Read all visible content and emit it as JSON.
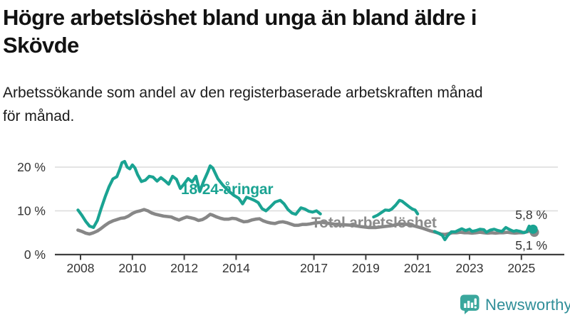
{
  "header": {
    "title": "Högre arbetslöshet bland unga än bland äldre i Skövde",
    "title_lines": [
      "Högre arbetslöshet bland unga än bland äldre i",
      "Skövde"
    ],
    "subtitle": "Arbetssökande som andel av den registerbaserade arbetskraften månad för månad.",
    "subtitle_lines": [
      "Arbetssökande som andel av den registerbaserade arbetskraften månad",
      "för månad."
    ]
  },
  "chart_data": {
    "type": "line",
    "unit": "%",
    "xlim": [
      2007.6,
      2025.9
    ],
    "ylim": [
      0,
      23
    ],
    "grid": "horizontal",
    "x_ticks": [
      2008,
      2010,
      2012,
      2014,
      2017,
      2019,
      2021,
      2023,
      2025
    ],
    "y_ticks": [
      {
        "value": 0,
        "label": "0 %"
      },
      {
        "value": 10,
        "label": "10 %"
      },
      {
        "value": 20,
        "label": "20 %"
      }
    ],
    "style": {
      "grid_color": "#dbdbdb",
      "axis_color": "#3f3f3f",
      "tick_color": "#333333"
    },
    "series": [
      {
        "name": "Total arbetslöshet",
        "color": "#878787",
        "label_color": "#8a8a8a",
        "width": 4.6,
        "end_label": "5,1 %",
        "end_dot": [
          2025.5,
          5.1
        ],
        "segments": [
          [
            [
              2007.9,
              5.6
            ],
            [
              2008.05,
              5.3
            ],
            [
              2008.2,
              4.9
            ],
            [
              2008.35,
              4.7
            ],
            [
              2008.5,
              5.0
            ],
            [
              2008.65,
              5.4
            ],
            [
              2008.8,
              6.0
            ],
            [
              2008.95,
              6.7
            ],
            [
              2009.1,
              7.3
            ],
            [
              2009.25,
              7.7
            ],
            [
              2009.4,
              8.0
            ],
            [
              2009.55,
              8.3
            ],
            [
              2009.7,
              8.4
            ],
            [
              2009.85,
              8.8
            ],
            [
              2010.0,
              9.4
            ],
            [
              2010.15,
              9.8
            ],
            [
              2010.3,
              10.0
            ],
            [
              2010.45,
              10.3
            ],
            [
              2010.6,
              10.0
            ],
            [
              2010.75,
              9.5
            ],
            [
              2010.9,
              9.2
            ],
            [
              2011.05,
              9.0
            ],
            [
              2011.2,
              8.8
            ],
            [
              2011.35,
              8.7
            ],
            [
              2011.5,
              8.6
            ],
            [
              2011.65,
              8.2
            ],
            [
              2011.8,
              7.9
            ],
            [
              2011.95,
              8.3
            ],
            [
              2012.1,
              8.6
            ],
            [
              2012.25,
              8.4
            ],
            [
              2012.4,
              8.2
            ],
            [
              2012.55,
              7.8
            ],
            [
              2012.7,
              8.0
            ],
            [
              2012.85,
              8.5
            ],
            [
              2013.0,
              9.2
            ],
            [
              2013.1,
              9.0
            ],
            [
              2013.25,
              8.6
            ],
            [
              2013.4,
              8.3
            ],
            [
              2013.55,
              8.1
            ],
            [
              2013.7,
              8.1
            ],
            [
              2013.85,
              8.3
            ],
            [
              2014.0,
              8.2
            ],
            [
              2014.15,
              7.8
            ],
            [
              2014.3,
              7.5
            ],
            [
              2014.45,
              7.6
            ],
            [
              2014.6,
              7.9
            ],
            [
              2014.75,
              8.1
            ],
            [
              2014.9,
              8.2
            ],
            [
              2015.05,
              7.7
            ],
            [
              2015.2,
              7.4
            ],
            [
              2015.35,
              7.2
            ],
            [
              2015.5,
              7.1
            ],
            [
              2015.65,
              7.4
            ],
            [
              2015.8,
              7.5
            ],
            [
              2015.95,
              7.3
            ],
            [
              2016.1,
              7.0
            ],
            [
              2016.25,
              6.7
            ],
            [
              2016.4,
              6.7
            ],
            [
              2016.55,
              6.9
            ],
            [
              2016.7,
              6.9
            ],
            [
              2016.85,
              7.0
            ],
            [
              2017.0,
              7.2
            ],
            [
              2017.15,
              7.3
            ],
            [
              2017.3,
              7.4
            ],
            [
              2017.6,
              7.1
            ],
            [
              2017.9,
              6.9
            ],
            [
              2018.2,
              6.8
            ],
            [
              2018.5,
              6.7
            ],
            [
              2018.8,
              6.4
            ],
            [
              2019.1,
              6.2
            ],
            [
              2019.4,
              6.2
            ],
            [
              2019.7,
              6.4
            ],
            [
              2020.0,
              6.6
            ],
            [
              2020.3,
              7.0
            ],
            [
              2020.6,
              6.9
            ],
            [
              2020.9,
              6.5
            ],
            [
              2021.2,
              6.0
            ],
            [
              2021.5,
              5.4
            ],
            [
              2021.75,
              5.0
            ],
            [
              2021.9,
              4.7
            ],
            [
              2022.05,
              4.6
            ],
            [
              2022.2,
              4.8
            ],
            [
              2022.35,
              5.0
            ],
            [
              2022.5,
              5.0
            ],
            [
              2022.65,
              5.1
            ],
            [
              2022.8,
              5.0
            ],
            [
              2022.95,
              5.0
            ],
            [
              2023.1,
              4.9
            ],
            [
              2023.25,
              5.0
            ],
            [
              2023.4,
              5.1
            ],
            [
              2023.55,
              5.0
            ],
            [
              2023.7,
              4.9
            ],
            [
              2023.85,
              5.0
            ],
            [
              2024.0,
              4.9
            ],
            [
              2024.15,
              5.0
            ],
            [
              2024.3,
              5.0
            ],
            [
              2024.45,
              5.1
            ],
            [
              2024.6,
              5.0
            ],
            [
              2024.75,
              4.9
            ],
            [
              2024.9,
              5.0
            ],
            [
              2025.05,
              5.0
            ],
            [
              2025.2,
              5.2
            ],
            [
              2025.35,
              5.4
            ],
            [
              2025.5,
              5.1
            ]
          ]
        ]
      },
      {
        "name": "18-24-åringar",
        "color": "#1aa392",
        "label_color": "#1aa392",
        "width": 4.2,
        "end_label": "5,8 %",
        "end_dot": [
          2025.45,
          5.8
        ],
        "segments": [
          [
            [
              2007.9,
              10.2
            ],
            [
              2008.05,
              9.0
            ],
            [
              2008.2,
              7.6
            ],
            [
              2008.35,
              6.5
            ],
            [
              2008.5,
              6.2
            ],
            [
              2008.65,
              7.8
            ],
            [
              2008.8,
              10.6
            ],
            [
              2008.95,
              13.2
            ],
            [
              2009.1,
              15.5
            ],
            [
              2009.25,
              17.3
            ],
            [
              2009.4,
              17.8
            ],
            [
              2009.5,
              19.3
            ],
            [
              2009.6,
              21.0
            ],
            [
              2009.7,
              21.3
            ],
            [
              2009.8,
              20.0
            ],
            [
              2009.9,
              19.6
            ],
            [
              2010.0,
              20.5
            ],
            [
              2010.1,
              19.8
            ],
            [
              2010.2,
              18.3
            ],
            [
              2010.35,
              16.7
            ],
            [
              2010.5,
              17.0
            ],
            [
              2010.65,
              17.9
            ],
            [
              2010.8,
              17.7
            ],
            [
              2010.95,
              16.8
            ],
            [
              2011.1,
              17.6
            ],
            [
              2011.25,
              16.9
            ],
            [
              2011.4,
              16.1
            ],
            [
              2011.55,
              17.9
            ],
            [
              2011.7,
              17.2
            ],
            [
              2011.85,
              15.1
            ],
            [
              2012.0,
              16.2
            ],
            [
              2012.15,
              17.4
            ],
            [
              2012.3,
              16.6
            ],
            [
              2012.45,
              17.9
            ],
            [
              2012.6,
              14.4
            ],
            [
              2012.75,
              16.8
            ],
            [
              2012.9,
              18.8
            ],
            [
              2013.0,
              20.3
            ],
            [
              2013.1,
              19.8
            ],
            [
              2013.3,
              17.3
            ],
            [
              2013.5,
              15.8
            ],
            [
              2013.7,
              14.6
            ],
            [
              2013.9,
              13.6
            ],
            [
              2014.1,
              12.9
            ],
            [
              2014.25,
              11.6
            ],
            [
              2014.4,
              13.1
            ],
            [
              2014.55,
              12.8
            ],
            [
              2014.7,
              12.4
            ],
            [
              2014.85,
              11.9
            ],
            [
              2015.0,
              10.5
            ],
            [
              2015.15,
              10.0
            ],
            [
              2015.3,
              10.8
            ],
            [
              2015.5,
              12.0
            ],
            [
              2015.7,
              12.4
            ],
            [
              2015.85,
              11.6
            ],
            [
              2016.0,
              10.3
            ],
            [
              2016.15,
              9.5
            ],
            [
              2016.3,
              9.2
            ],
            [
              2016.5,
              10.7
            ],
            [
              2016.65,
              10.4
            ],
            [
              2016.8,
              9.9
            ],
            [
              2016.95,
              9.7
            ],
            [
              2017.1,
              10.0
            ],
            [
              2017.25,
              9.3
            ]
          ],
          [
            [
              2019.3,
              8.6
            ],
            [
              2019.45,
              9.0
            ],
            [
              2019.6,
              9.6
            ],
            [
              2019.75,
              10.2
            ],
            [
              2019.9,
              10.1
            ],
            [
              2020.0,
              10.4
            ],
            [
              2020.15,
              11.3
            ],
            [
              2020.3,
              12.4
            ],
            [
              2020.4,
              12.2
            ],
            [
              2020.55,
              11.5
            ],
            [
              2020.7,
              10.8
            ],
            [
              2020.8,
              10.4
            ],
            [
              2020.9,
              10.2
            ],
            [
              2021.0,
              9.3
            ]
          ],
          [
            [
              2021.65,
              5.3
            ],
            [
              2021.8,
              4.9
            ],
            [
              2021.95,
              4.4
            ],
            [
              2022.05,
              3.4
            ],
            [
              2022.15,
              4.3
            ],
            [
              2022.3,
              5.2
            ],
            [
              2022.45,
              5.2
            ],
            [
              2022.55,
              5.5
            ],
            [
              2022.7,
              5.9
            ],
            [
              2022.85,
              5.5
            ],
            [
              2023.0,
              5.8
            ],
            [
              2023.1,
              5.3
            ],
            [
              2023.25,
              5.5
            ],
            [
              2023.4,
              5.8
            ],
            [
              2023.55,
              5.7
            ],
            [
              2023.65,
              5.1
            ],
            [
              2023.8,
              5.6
            ],
            [
              2023.95,
              5.8
            ],
            [
              2024.1,
              5.5
            ],
            [
              2024.25,
              5.3
            ],
            [
              2024.4,
              6.2
            ],
            [
              2024.55,
              5.7
            ],
            [
              2024.7,
              5.3
            ],
            [
              2024.8,
              5.5
            ],
            [
              2024.95,
              5.3
            ],
            [
              2025.1,
              5.0
            ],
            [
              2025.2,
              5.2
            ],
            [
              2025.3,
              6.5
            ],
            [
              2025.45,
              5.8
            ]
          ]
        ]
      }
    ]
  },
  "footer": {
    "brand": "Newsworthy",
    "brand_icon": "bar-chart-speech-bubble-icon",
    "brand_color": "#2f8e98",
    "brand_icon_color": "#3aa79d"
  }
}
